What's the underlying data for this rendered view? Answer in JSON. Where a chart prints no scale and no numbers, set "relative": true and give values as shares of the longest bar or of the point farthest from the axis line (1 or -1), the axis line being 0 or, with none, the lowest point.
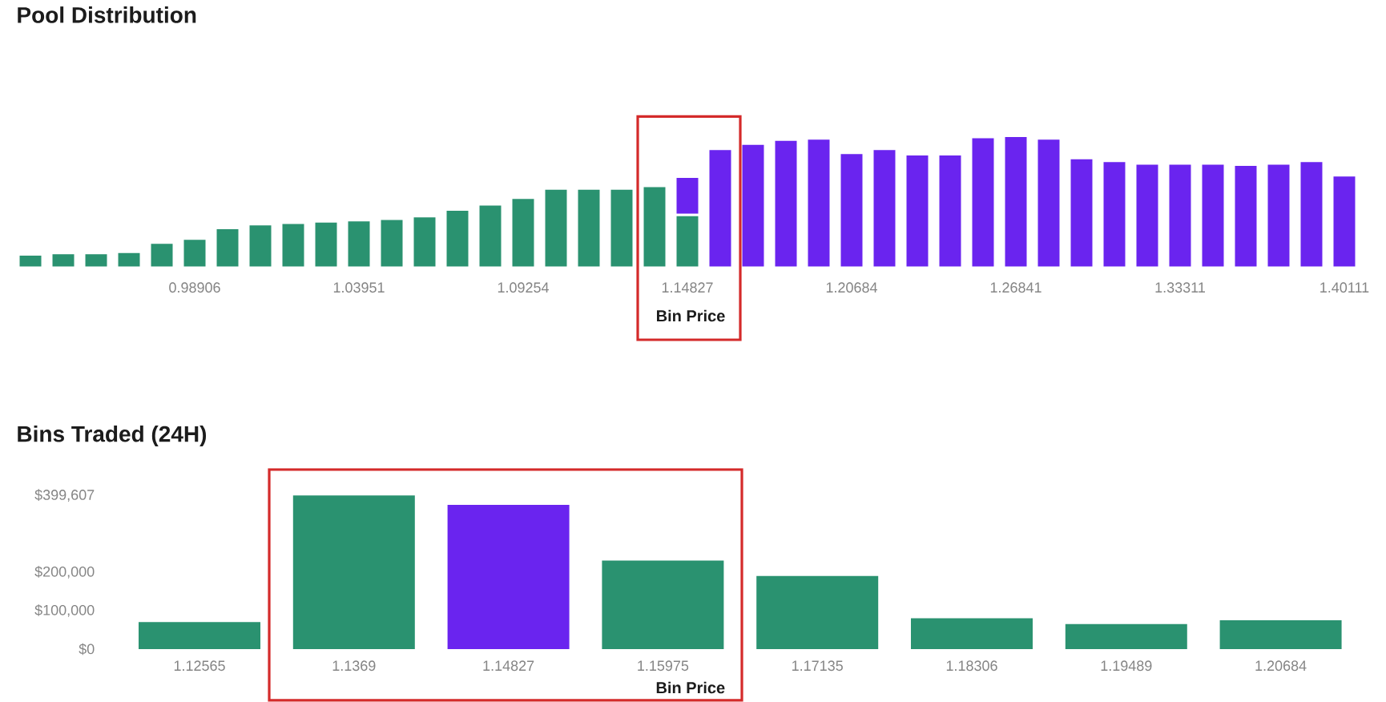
{
  "chart_data": [
    {
      "type": "bar",
      "title": "Pool Distribution",
      "xlabel": "Bin Price",
      "stacked": true,
      "relative": true,
      "categories": [
        null,
        null,
        null,
        null,
        null,
        "0.98906",
        null,
        null,
        null,
        null,
        "1.03951",
        null,
        null,
        null,
        null,
        "1.09254",
        null,
        null,
        null,
        null,
        "1.14827",
        null,
        null,
        null,
        null,
        "1.20684",
        null,
        null,
        null,
        null,
        "1.26841",
        null,
        null,
        null,
        null,
        "1.33311",
        null,
        null,
        null,
        null,
        "1.40111"
      ],
      "series": [
        {
          "color": "#2a9270",
          "values": [
            0.1,
            0.11,
            0.11,
            0.12,
            0.19,
            0.22,
            0.3,
            0.33,
            0.34,
            0.35,
            0.36,
            0.37,
            0.39,
            0.44,
            0.48,
            0.53,
            0.6,
            0.6,
            0.6,
            0.62,
            0.4,
            null,
            null,
            null,
            null,
            null,
            null,
            null,
            null,
            null,
            null,
            null,
            null,
            null,
            null,
            null,
            null,
            null,
            null,
            null,
            null
          ]
        },
        {
          "color": "#6a24ef",
          "values": [
            null,
            null,
            null,
            null,
            null,
            null,
            null,
            null,
            null,
            null,
            null,
            null,
            null,
            null,
            null,
            null,
            null,
            null,
            null,
            null,
            0.29,
            0.9,
            0.94,
            0.97,
            0.98,
            0.87,
            0.9,
            0.86,
            0.86,
            0.99,
            1.0,
            0.98,
            0.83,
            0.81,
            0.79,
            0.79,
            0.79,
            0.78,
            0.79,
            0.81,
            0.7
          ]
        }
      ]
    },
    {
      "type": "bar",
      "title": "Bins Traded (24H)",
      "xlabel": "Bin Price",
      "categories": [
        "1.12565",
        "1.1369",
        "1.14827",
        "1.15975",
        "1.17135",
        "1.18306",
        "1.19489",
        "1.20684"
      ],
      "values": [
        70000,
        399607,
        375000,
        230000,
        190000,
        80000,
        65000,
        75000
      ],
      "colors": [
        "#2a9270",
        "#2a9270",
        "#6a24ef",
        "#2a9270",
        "#2a9270",
        "#2a9270",
        "#2a9270",
        "#2a9270"
      ],
      "ylim": [
        0,
        399607
      ],
      "yticks": [
        {
          "value": 0,
          "label": "$0"
        },
        {
          "value": 100000,
          "label": "$100,000"
        },
        {
          "value": 200000,
          "label": "$200,000"
        },
        {
          "value": 399607,
          "label": "$399,607"
        }
      ]
    }
  ]
}
